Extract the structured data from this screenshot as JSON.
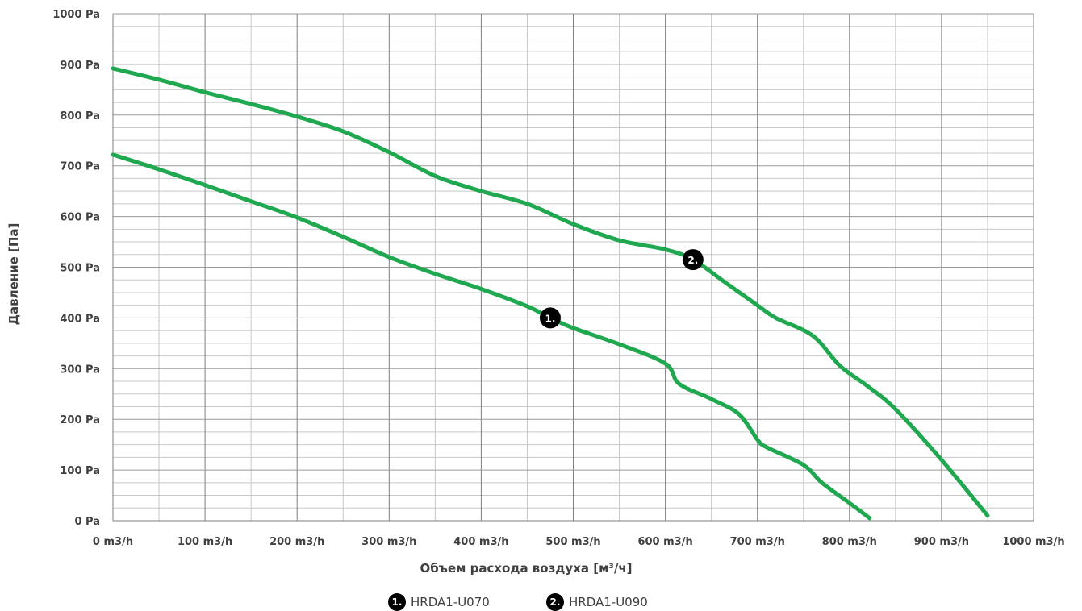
{
  "chart_data": {
    "type": "line",
    "xlabel": "Объем расхода воздуха [м³/ч]",
    "ylabel": "Давление [Па]",
    "xlim": [
      0,
      1000
    ],
    "ylim": [
      0,
      1000
    ],
    "x_ticks": [
      0,
      100,
      200,
      300,
      400,
      500,
      600,
      700,
      800,
      900,
      1000
    ],
    "y_ticks": [
      0,
      100,
      200,
      300,
      400,
      500,
      600,
      700,
      800,
      900,
      1000
    ],
    "x_tick_labels": [
      "0 m3/h",
      "100 m3/h",
      "200 m3/h",
      "300 m3/h",
      "400 m3/h",
      "500 m3/h",
      "600 m3/h",
      "700 m3/h",
      "800 m3/h",
      "900 m3/h",
      "1000 m3/h"
    ],
    "y_tick_labels": [
      "0 Pa",
      "100 Pa",
      "200 Pa",
      "300 Pa",
      "400 Pa",
      "500 Pa",
      "600 Pa",
      "700 Pa",
      "800 Pa",
      "900 Pa",
      "1000 Pa"
    ],
    "grid": true,
    "legend_position": "bottom-center",
    "line_color": "#1fa84f",
    "series": [
      {
        "name": "HRDA1-U070",
        "marker": "1.",
        "marker_at": [
          475,
          400
        ],
        "x": [
          0,
          50,
          100,
          150,
          200,
          250,
          300,
          350,
          400,
          450,
          475,
          500,
          550,
          600,
          615,
          650,
          680,
          700,
          710,
          750,
          770,
          800,
          822
        ],
        "y": [
          722,
          693,
          662,
          630,
          598,
          560,
          520,
          487,
          457,
          423,
          400,
          380,
          348,
          310,
          270,
          240,
          210,
          160,
          145,
          110,
          75,
          35,
          5
        ]
      },
      {
        "name": "HRDA1-U090",
        "marker": "2.",
        "marker_at": [
          630,
          515
        ],
        "x": [
          0,
          50,
          100,
          150,
          200,
          250,
          300,
          350,
          400,
          450,
          500,
          550,
          600,
          630,
          665,
          700,
          720,
          760,
          790,
          820,
          850,
          900,
          950
        ],
        "y": [
          892,
          870,
          845,
          822,
          797,
          768,
          727,
          680,
          650,
          625,
          585,
          553,
          535,
          515,
          470,
          425,
          400,
          365,
          305,
          265,
          220,
          120,
          10
        ]
      }
    ]
  },
  "legend": {
    "items": [
      {
        "marker": "1.",
        "label": "HRDA1-U070"
      },
      {
        "marker": "2.",
        "label": "HRDA1-U090"
      }
    ]
  }
}
